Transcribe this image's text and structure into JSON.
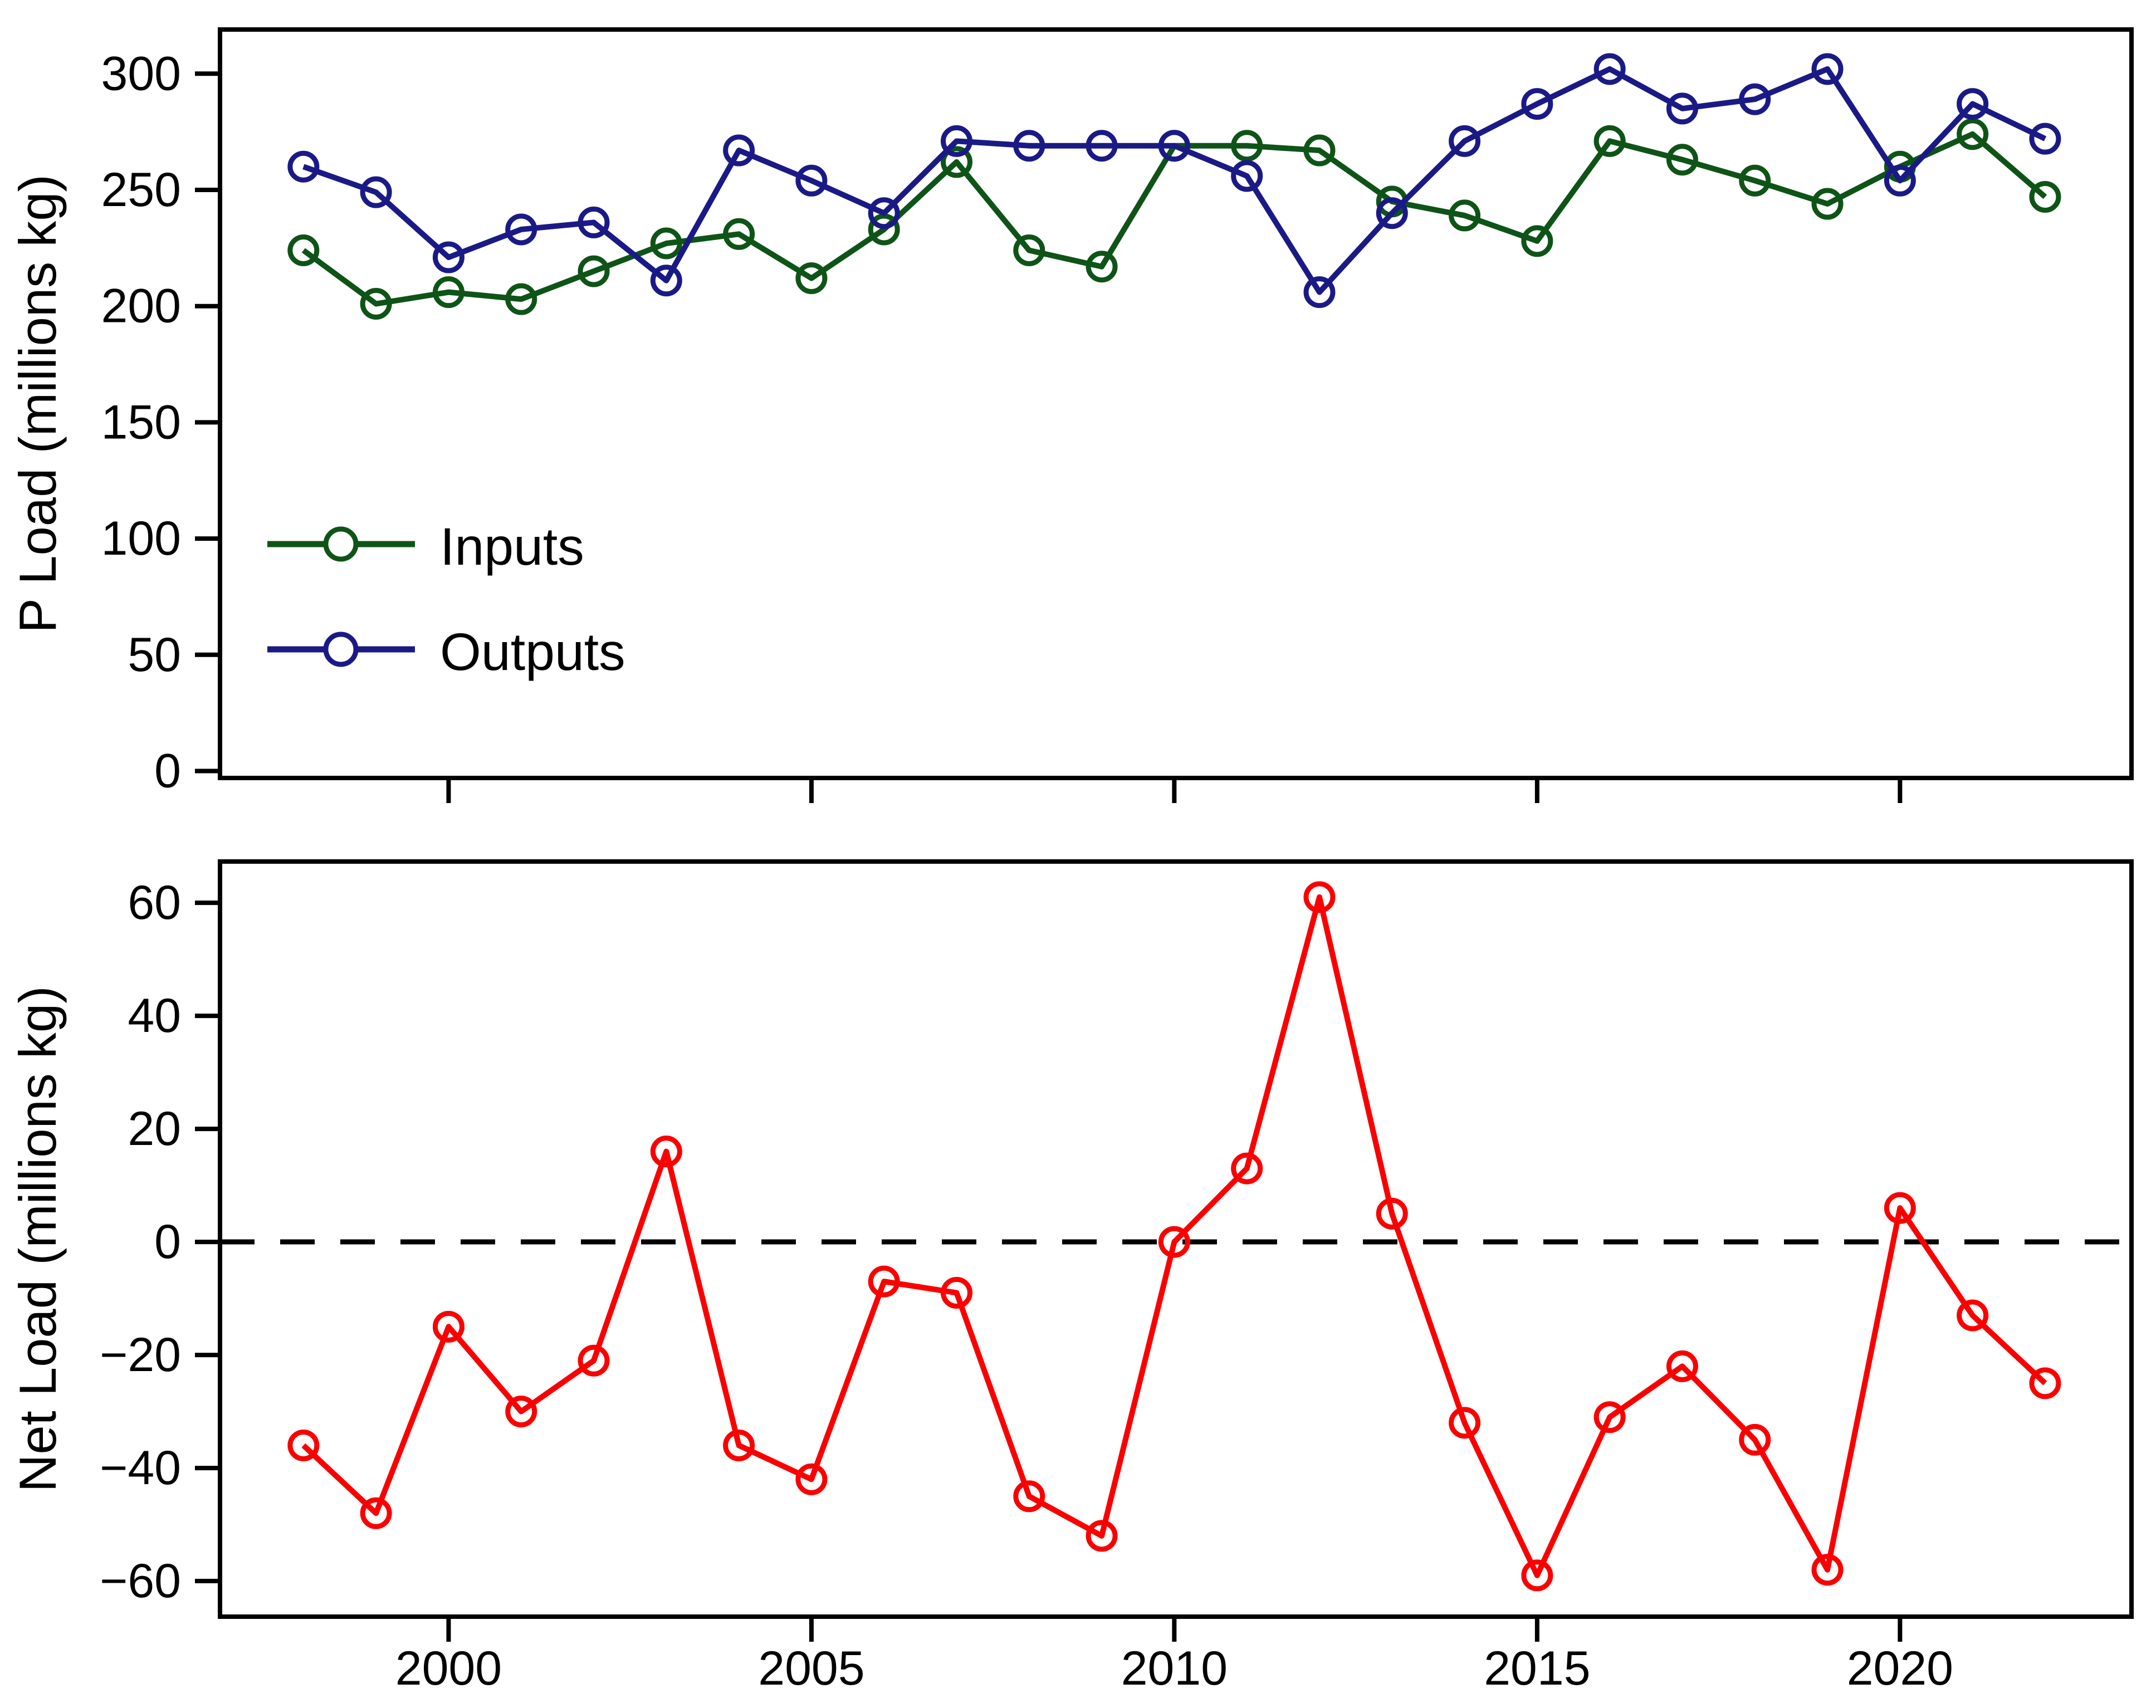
{
  "figure": {
    "background": "#ffffff",
    "frame_color": "#000000",
    "zero_line_style": "dashed"
  },
  "chart_data": [
    {
      "type": "line",
      "title": "",
      "xlabel": "",
      "ylabel": "P Load (millions kg)",
      "x": [
        1998,
        1999,
        2000,
        2001,
        2002,
        2003,
        2004,
        2005,
        2006,
        2007,
        2008,
        2009,
        2010,
        2011,
        2012,
        2013,
        2014,
        2015,
        2016,
        2017,
        2018,
        2019,
        2020,
        2021,
        2022
      ],
      "series": [
        {
          "name": "Inputs",
          "color": "#0e5417",
          "marker": "open-circle",
          "values": [
            224,
            201,
            206,
            203,
            215,
            227,
            231,
            212,
            233,
            262,
            224,
            217,
            269,
            269,
            267,
            245,
            239,
            228,
            271,
            263,
            254,
            244,
            260,
            274,
            247
          ]
        },
        {
          "name": "Outputs",
          "color": "#1a1a87",
          "marker": "open-circle",
          "values": [
            260,
            249,
            221,
            233,
            236,
            211,
            267,
            254,
            240,
            271,
            269,
            269,
            269,
            256,
            206,
            240,
            271,
            287,
            302,
            285,
            289,
            302,
            254,
            287,
            272
          ]
        }
      ],
      "ylim": [
        -3,
        319
      ],
      "xlim": [
        1996.85,
        2023.19
      ],
      "yticks": [
        0,
        50,
        100,
        150,
        200,
        250,
        300
      ],
      "ytick_labels": [
        "0",
        "50",
        "100",
        "150",
        "200",
        "250",
        "300"
      ],
      "xticks": [
        2000,
        2005,
        2010,
        2015,
        2020
      ],
      "xtick_labels": [],
      "grid": false,
      "legend_position": "lower-left"
    },
    {
      "type": "line",
      "title": "",
      "xlabel": "",
      "ylabel": "Net Load (millions kg)",
      "x": [
        1998,
        1999,
        2000,
        2001,
        2002,
        2003,
        2004,
        2005,
        2006,
        2007,
        2008,
        2009,
        2010,
        2011,
        2012,
        2013,
        2014,
        2015,
        2016,
        2017,
        2018,
        2019,
        2020,
        2021,
        2022
      ],
      "series": [
        {
          "name": "Net",
          "color": "#fb0000",
          "marker": "open-circle",
          "values": [
            -36,
            -48,
            -15,
            -30,
            -21,
            16,
            -36,
            -42,
            -7,
            -9,
            -45,
            -52,
            0,
            13,
            61,
            5,
            -32,
            -59,
            -31,
            -22,
            -35,
            -58,
            6,
            -13,
            -25
          ]
        }
      ],
      "ylim": [
        -66.3,
        67.3
      ],
      "xlim": [
        1996.85,
        2023.19
      ],
      "yticks": [
        -60,
        -40,
        -20,
        0,
        20,
        40,
        60
      ],
      "ytick_labels": [
        "−60",
        "−40",
        "−20",
        "0",
        "20",
        "40",
        "60"
      ],
      "xticks": [
        2000,
        2005,
        2010,
        2015,
        2020
      ],
      "xtick_labels": [
        "2000",
        "2005",
        "2010",
        "2015",
        "2020"
      ],
      "zero_line": true,
      "grid": false
    }
  ]
}
